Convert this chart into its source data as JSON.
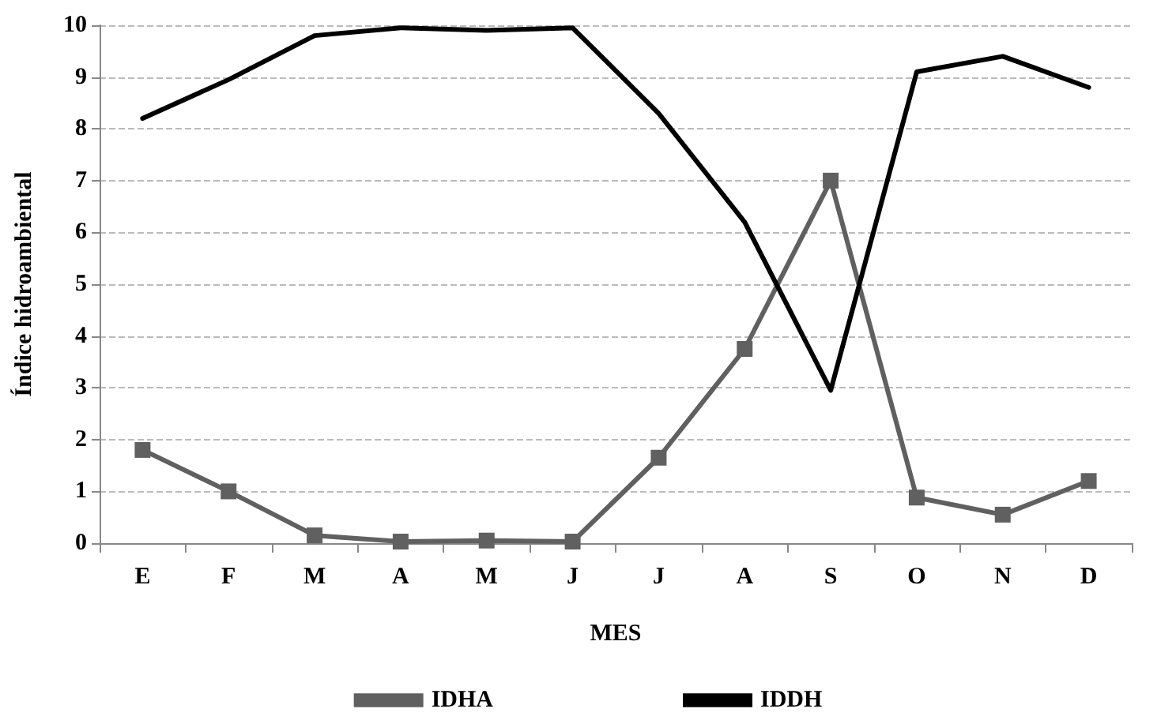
{
  "chart_data": {
    "type": "line",
    "xlabel": "MES",
    "ylabel": "Índice hidroambiental",
    "categories": [
      "E",
      "F",
      "M",
      "A",
      "M",
      "J",
      "J",
      "A",
      "S",
      "O",
      "N",
      "D"
    ],
    "series": [
      {
        "name": "IDHA",
        "color": "#606060",
        "marker": "square",
        "values": [
          1.8,
          1.0,
          0.15,
          0.03,
          0.05,
          0.03,
          1.65,
          3.75,
          7.0,
          0.88,
          0.55,
          1.2
        ]
      },
      {
        "name": "IDDH",
        "color": "#000000",
        "marker": "none",
        "values": [
          8.2,
          8.95,
          9.8,
          9.95,
          9.9,
          9.95,
          8.3,
          6.2,
          2.95,
          9.1,
          9.4,
          8.8
        ]
      }
    ],
    "ylim": [
      0,
      10
    ],
    "yticks": [
      0,
      1,
      2,
      3,
      4,
      5,
      6,
      7,
      8,
      9,
      10
    ],
    "grid": "y",
    "legend": "bottom",
    "line_style": "solid"
  }
}
